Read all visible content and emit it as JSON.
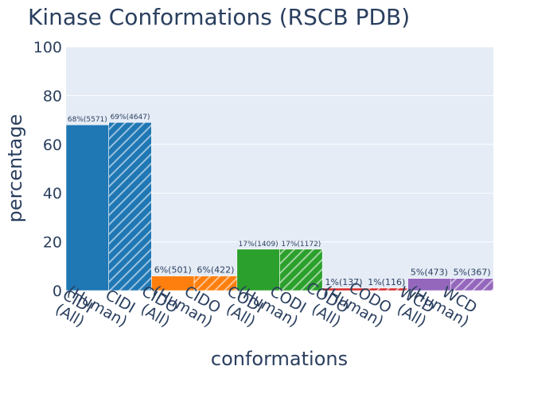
{
  "chart_data": {
    "type": "bar",
    "title": "Kinase Conformations (RSCB PDB)",
    "xlabel": "conformations",
    "ylabel": "percentage",
    "ylim": [
      0,
      100
    ],
    "yticks": [
      0,
      20,
      40,
      60,
      80,
      100
    ],
    "grid": true,
    "legend": "none",
    "categories": [
      "CIDI(All)",
      "CIDI(Human)",
      "CIDO(All)",
      "CIDO(Human)",
      "CODI(All)",
      "CODI(Human)",
      "CODO(All)",
      "CODO(Human)",
      "WCD(All)",
      "WCD(Human)"
    ],
    "values": [
      68,
      69,
      6,
      6,
      17,
      17,
      1,
      1,
      5,
      5
    ],
    "labels": [
      "68%(5571)",
      "69%(4647)",
      "6%(501)",
      "6%(422)",
      "17%(1409)",
      "17%(1172)",
      "1%(137)",
      "1%(116)",
      "5%(473)",
      "5%(367)"
    ],
    "colors": [
      "#1f77b4",
      "#1f77b4",
      "#ff7f0e",
      "#ff7f0e",
      "#2ca02c",
      "#2ca02c",
      "#d62728",
      "#d62728",
      "#9467bd",
      "#9467bd"
    ],
    "hatched": [
      false,
      true,
      false,
      true,
      false,
      true,
      false,
      true,
      false,
      true
    ]
  }
}
